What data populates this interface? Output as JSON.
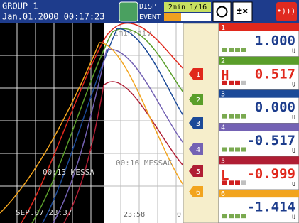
{
  "header": {
    "group": "GROUP 1",
    "datetime": "Jan.01.2000 00:17:23",
    "disp": "DISP",
    "event": "EVENT",
    "rate": "2min 1/16"
  },
  "trend": {
    "div": "1min/div",
    "messages": [
      "00:13 MESSA",
      "00:16 MESSAG"
    ],
    "time_labels": [
      "SEP.07 23:37",
      "23:58",
      "0"
    ]
  },
  "channels": [
    {
      "number": "1",
      "value": "1.000",
      "unit": "U",
      "color": "#e0281c"
    },
    {
      "number": "2",
      "value": "0.517",
      "unit": "U",
      "color": "#5a9e2a",
      "alarm": "H"
    },
    {
      "number": "3",
      "value": "0.000",
      "unit": "U",
      "color": "#1c4a98"
    },
    {
      "number": "4",
      "value": "-0.517",
      "unit": "U",
      "color": "#7462b4"
    },
    {
      "number": "5",
      "value": "-0.999",
      "unit": "U",
      "color": "#b01e34",
      "alarm": "L"
    },
    {
      "number": "6",
      "value": "-1.414",
      "unit": "U",
      "color": "#f2a41e"
    }
  ]
}
